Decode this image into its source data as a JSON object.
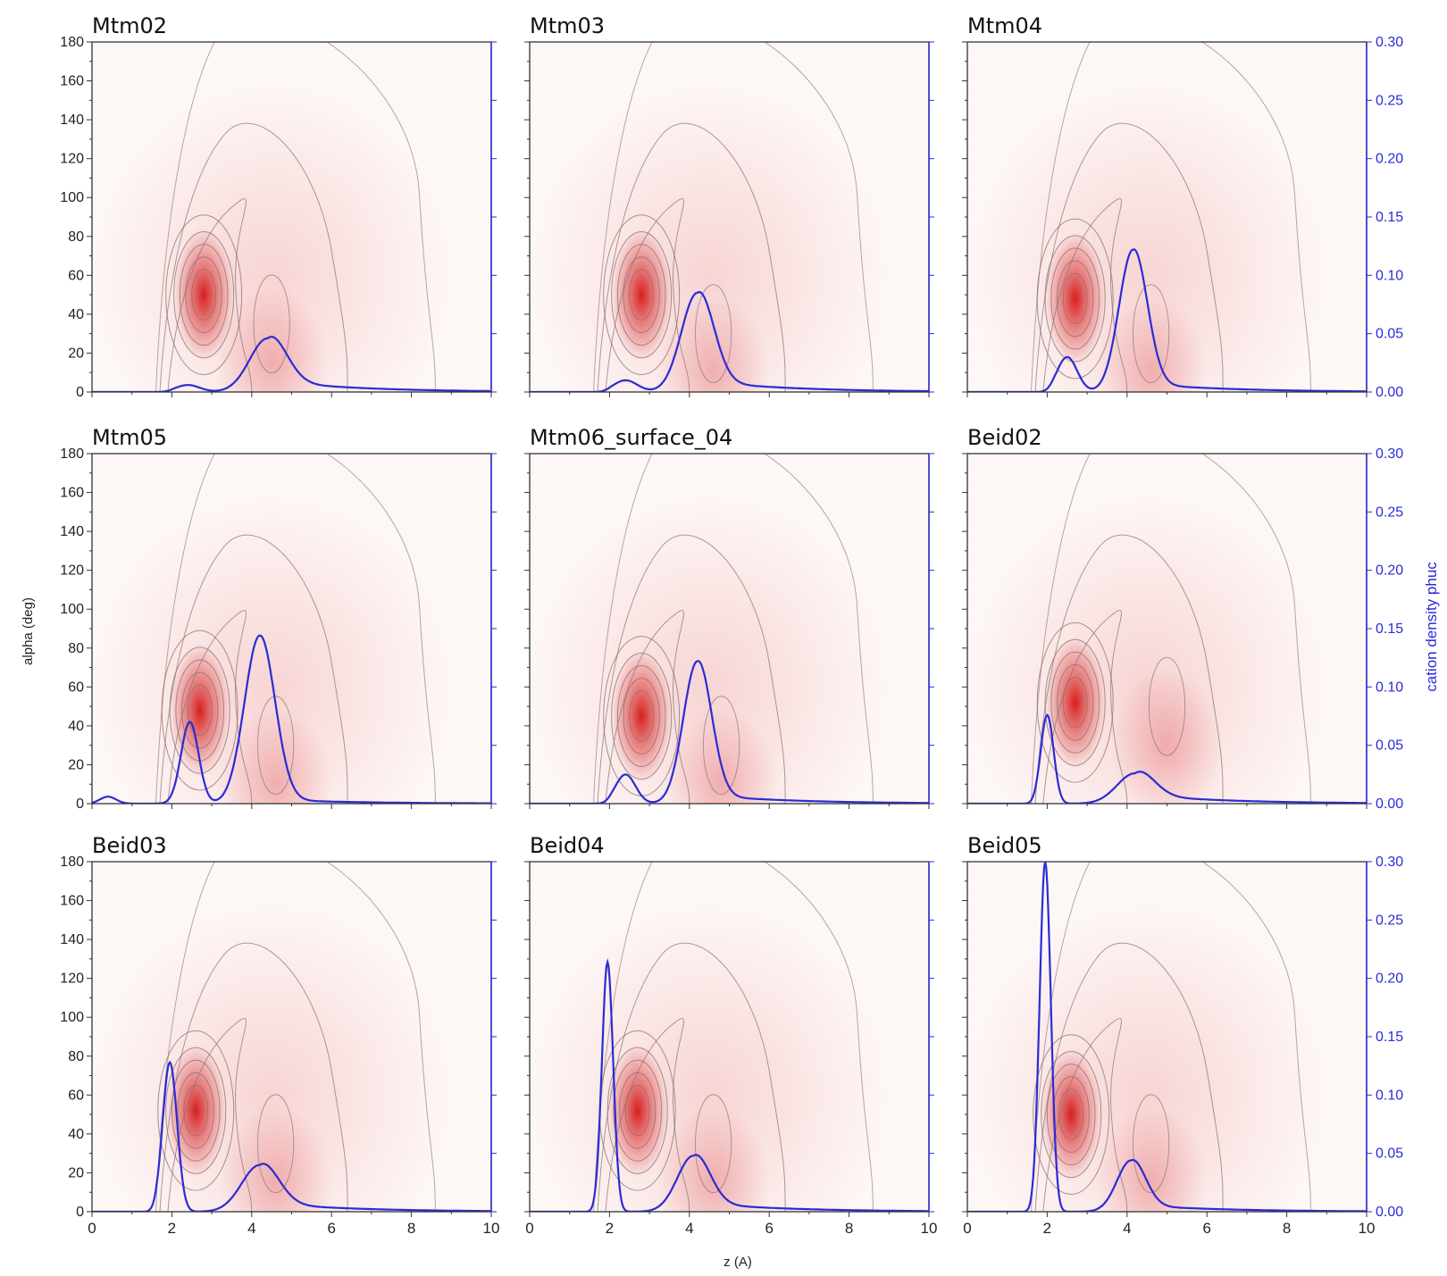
{
  "chart_data": {
    "type": "heatmap",
    "layout": "3x3 grid",
    "xlabel": "z (A)",
    "ylabel": "alpha (deg)",
    "y2label": "cation density phuc",
    "xlim": [
      0,
      10
    ],
    "ylim": [
      0,
      180
    ],
    "y2lim": [
      0,
      0.3
    ],
    "x_ticks": [
      0,
      2,
      4,
      6,
      8,
      10
    ],
    "x_tick_labels": [
      "0",
      "2",
      "4",
      "6",
      "8",
      "10"
    ],
    "y_ticks": [
      0,
      20,
      40,
      60,
      80,
      100,
      120,
      140,
      160,
      180
    ],
    "y_tick_labels": [
      "0",
      "20",
      "40",
      "60",
      "80",
      "100",
      "120",
      "140",
      "160",
      "180"
    ],
    "y2_ticks": [
      0,
      0.05,
      0.1,
      0.15,
      0.2,
      0.25,
      0.3
    ],
    "y2_tick_labels": [
      "0.00",
      "0.05",
      "0.10",
      "0.15",
      "0.20",
      "0.25",
      "0.30"
    ],
    "colors": {
      "heat": "#d62020",
      "contour": "#8a7070",
      "density": "#2b2bd6",
      "frame": "#333333"
    },
    "panels": [
      {
        "title": "Mtm02",
        "hot_spot": {
          "z": 2.8,
          "alpha": 50
        },
        "secondary": {
          "z": 4.5,
          "alpha": 15
        },
        "density": {
          "peaks": [
            {
              "z": 2.4,
              "v": 0.006,
              "w": 0.3
            },
            {
              "z": 4.4,
              "v": 0.046,
              "w": 0.45
            }
          ],
          "tail": 0.01
        }
      },
      {
        "title": "Mtm03",
        "hot_spot": {
          "z": 2.8,
          "alpha": 50
        },
        "secondary": {
          "z": 4.6,
          "alpha": 10
        },
        "density": {
          "peaks": [
            {
              "z": 2.4,
              "v": 0.01,
              "w": 0.3
            },
            {
              "z": 4.2,
              "v": 0.085,
              "w": 0.4
            }
          ],
          "tail": 0.01
        }
      },
      {
        "title": "Mtm04",
        "hot_spot": {
          "z": 2.7,
          "alpha": 48
        },
        "secondary": {
          "z": 4.6,
          "alpha": 10
        },
        "density": {
          "peaks": [
            {
              "z": 2.5,
              "v": 0.03,
              "w": 0.25
            },
            {
              "z": 4.15,
              "v": 0.122,
              "w": 0.35
            }
          ],
          "tail": 0.008
        }
      },
      {
        "title": "Mtm05",
        "hot_spot": {
          "z": 2.7,
          "alpha": 48
        },
        "secondary": {
          "z": 4.6,
          "alpha": 10
        },
        "density": {
          "peaks": [
            {
              "z": 0.4,
              "v": 0.006,
              "w": 0.2
            },
            {
              "z": 2.45,
              "v": 0.07,
              "w": 0.22
            },
            {
              "z": 4.2,
              "v": 0.144,
              "w": 0.38
            }
          ],
          "tail": 0.004
        }
      },
      {
        "title": "Mtm06_surface_04",
        "hot_spot": {
          "z": 2.8,
          "alpha": 45
        },
        "secondary": {
          "z": 4.8,
          "alpha": 10
        },
        "density": {
          "peaks": [
            {
              "z": 2.4,
              "v": 0.025,
              "w": 0.25
            },
            {
              "z": 4.2,
              "v": 0.122,
              "w": 0.35
            }
          ],
          "tail": 0.008
        }
      },
      {
        "title": "Beid02",
        "hot_spot": {
          "z": 2.7,
          "alpha": 52
        },
        "secondary": {
          "z": 5.0,
          "alpha": 30
        },
        "density": {
          "peaks": [
            {
              "z": 2.0,
              "v": 0.076,
              "w": 0.16
            },
            {
              "z": 4.2,
              "v": 0.026,
              "w": 0.45
            }
          ],
          "tail": 0.008
        }
      },
      {
        "title": "Beid03",
        "hot_spot": {
          "z": 2.6,
          "alpha": 52
        },
        "secondary": {
          "z": 4.6,
          "alpha": 15
        },
        "density": {
          "peaks": [
            {
              "z": 1.95,
              "v": 0.128,
              "w": 0.18
            },
            {
              "z": 4.2,
              "v": 0.04,
              "w": 0.45
            }
          ],
          "tail": 0.008
        }
      },
      {
        "title": "Beid04",
        "hot_spot": {
          "z": 2.7,
          "alpha": 52
        },
        "secondary": {
          "z": 4.6,
          "alpha": 15
        },
        "density": {
          "peaks": [
            {
              "z": 1.95,
              "v": 0.214,
              "w": 0.14
            },
            {
              "z": 4.1,
              "v": 0.048,
              "w": 0.4
            }
          ],
          "tail": 0.008
        }
      },
      {
        "title": "Beid05",
        "hot_spot": {
          "z": 2.6,
          "alpha": 50
        },
        "secondary": {
          "z": 4.6,
          "alpha": 15
        },
        "density": {
          "peaks": [
            {
              "z": 1.95,
              "v": 0.3,
              "w": 0.14
            },
            {
              "z": 4.1,
              "v": 0.044,
              "w": 0.35
            }
          ],
          "tail": 0.006
        }
      }
    ]
  }
}
